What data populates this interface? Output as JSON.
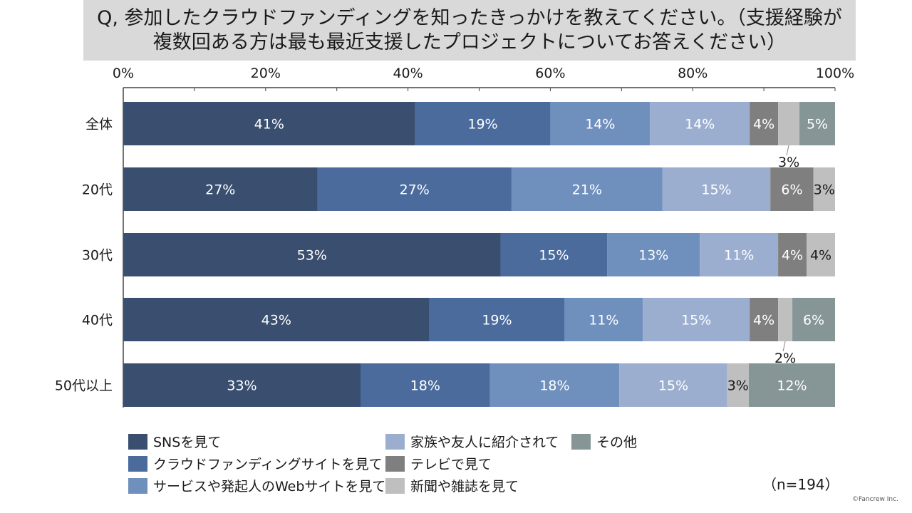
{
  "title": {
    "line1": "Q, 参加したクラウドファンディングを知ったきっかけを教えてください。（支援経験が",
    "line2": "複数回ある方は最も最近支援したプロジェクトについてお答えください）"
  },
  "sample_size": "（n=194）",
  "copyright": "©Fancrew Inc.",
  "chart_data": {
    "type": "bar",
    "orientation": "horizontal",
    "stacked": true,
    "categories": [
      "全体",
      "20代",
      "30代",
      "40代",
      "50代以上"
    ],
    "xlim": [
      0,
      100
    ],
    "x_ticks": [
      "0%",
      "20%",
      "40%",
      "60%",
      "80%",
      "100%"
    ],
    "legend_position": "bottom",
    "series": [
      {
        "name": "SNSを見て",
        "color": "#3a4f6f",
        "values": [
          41,
          27,
          53,
          43,
          33
        ],
        "labels": [
          "41%",
          "27%",
          "53%",
          "43%",
          "33%"
        ]
      },
      {
        "name": "クラウドファンディングサイトを見て",
        "color": "#4a6b9c",
        "values": [
          19,
          27,
          15,
          19,
          18
        ],
        "labels": [
          "19%",
          "27%",
          "15%",
          "19%",
          "18%"
        ]
      },
      {
        "name": "サービスや発起人のWebサイトを見て",
        "color": "#6f8fbd",
        "values": [
          14,
          21,
          13,
          11,
          18
        ],
        "labels": [
          "14%",
          "21%",
          "13%",
          "11%",
          "18%"
        ]
      },
      {
        "name": "家族や友人に紹介されて",
        "color": "#9caed0",
        "values": [
          14,
          15,
          11,
          15,
          15
        ],
        "labels": [
          "14%",
          "15%",
          "11%",
          "15%",
          "15%"
        ]
      },
      {
        "name": "テレビで見て",
        "color": "#7f7f7f",
        "values": [
          4,
          6,
          4,
          4,
          0
        ],
        "labels": [
          "4%",
          "6%",
          "4%",
          "4%",
          ""
        ]
      },
      {
        "name": "新聞や雑誌を見て",
        "color": "#bfbfbf",
        "values": [
          3,
          3,
          4,
          2,
          3
        ],
        "labels": [
          "3%",
          "3%",
          "4%",
          "2%",
          "3%"
        ]
      },
      {
        "name": "その他",
        "color": "#869595",
        "values": [
          5,
          0,
          0,
          6,
          12
        ],
        "labels": [
          "5%",
          "",
          "",
          "6%",
          "12%"
        ]
      }
    ]
  }
}
